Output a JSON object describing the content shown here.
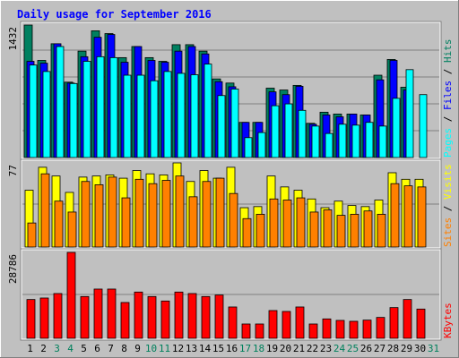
{
  "chart_data": {
    "type": "bar",
    "title": "Daily usage for September 2016",
    "categories": [
      "1",
      "2",
      "3",
      "4",
      "5",
      "6",
      "7",
      "8",
      "9",
      "10",
      "11",
      "12",
      "13",
      "14",
      "15",
      "16",
      "17",
      "18",
      "19",
      "20",
      "21",
      "22",
      "23",
      "24",
      "25",
      "26",
      "27",
      "28",
      "29",
      "30",
      "31"
    ],
    "weekend_days": [
      "3",
      "4",
      "10",
      "11",
      "17",
      "18",
      "24",
      "25",
      "31"
    ],
    "panels": [
      {
        "name": "pages-files-hits",
        "ymax": 1432,
        "ymax_label": "1432",
        "right_labels": [
          "Pages",
          "Files",
          "Hits"
        ],
        "series": [
          {
            "name": "Hits",
            "color": "#008060",
            "values": [
              1432,
              1050,
              1230,
              815,
              1150,
              1370,
              1340,
              1080,
              1200,
              1080,
              1040,
              1220,
              1220,
              1150,
              850,
              805,
              380,
              380,
              750,
              730,
              780,
              370,
              490,
              470,
              470,
              460,
              890,
              1060,
              760,
              null,
              null
            ]
          },
          {
            "name": "Files",
            "color": "#0000ff",
            "values": [
              1040,
              1020,
              1230,
              805,
              1090,
              1300,
              1330,
              1030,
              1200,
              1050,
              1030,
              1150,
              1200,
              1120,
              820,
              765,
              380,
              380,
              710,
              680,
              770,
              360,
              460,
              440,
              470,
              460,
              840,
              1050,
              730,
              null,
              null
            ]
          },
          {
            "name": "Pages",
            "color": "#00ffff",
            "values": [
              1000,
              930,
              1200,
              800,
              1040,
              1090,
              1080,
              890,
              890,
              830,
              930,
              910,
              895,
              1010,
              670,
              740,
              215,
              270,
              560,
              580,
              510,
              340,
              260,
              360,
              350,
              380,
              340,
              640,
              950,
              680,
              null
            ]
          }
        ]
      },
      {
        "name": "visits-sites",
        "ymax": 77,
        "ymax_label": "77",
        "right_labels": [
          "Sites",
          "Visits"
        ],
        "series": [
          {
            "name": "Visits",
            "color": "#ffff00",
            "values": [
              52,
              73,
              65,
              50,
              64,
              65,
              66,
              63,
              70,
              67,
              66,
              77,
              60,
              70,
              63,
              73,
              36,
              37,
              65,
              55,
              52,
              44,
              36,
              42,
              38,
              37,
              43,
              68,
              62,
              62,
              null
            ]
          },
          {
            "name": "Sites",
            "color": "#ff8000",
            "values": [
              22,
              67,
              42,
              32,
              60,
              57,
              64,
              45,
              62,
              58,
              61,
              65,
              46,
              60,
              63,
              49,
              26,
              30,
              44,
              43,
              45,
              32,
              34,
              29,
              30,
              33,
              30,
              58,
              56,
              55,
              null
            ]
          }
        ]
      },
      {
        "name": "kbytes",
        "ymax": 28786,
        "ymax_label": "28786",
        "right_labels": [
          "KBytes"
        ],
        "series": [
          {
            "name": "KBytes",
            "color": "#ff0000",
            "values": [
              13000,
              13500,
              15000,
              28786,
              14000,
              16500,
              16500,
              12000,
              15500,
              14000,
              12500,
              15500,
              15000,
              14000,
              14500,
              10500,
              4800,
              4800,
              9300,
              9000,
              10500,
              4800,
              6500,
              6000,
              5700,
              6100,
              7000,
              10300,
              13000,
              9800,
              null
            ]
          }
        ]
      }
    ]
  }
}
